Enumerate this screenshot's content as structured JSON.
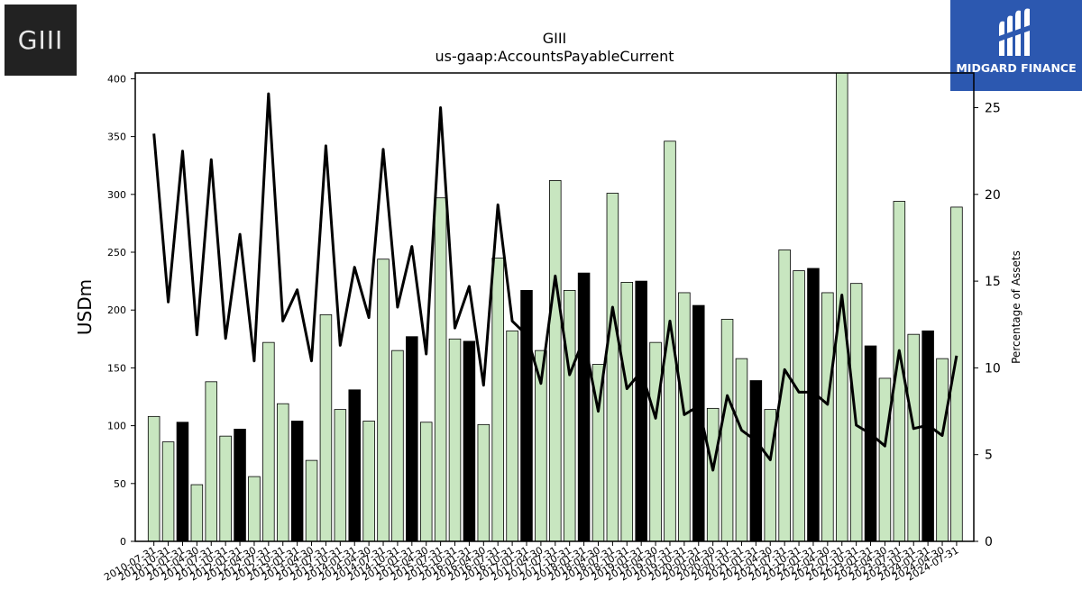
{
  "company_logo": {
    "text": "GIII",
    "bg": "#222222"
  },
  "brand_logo": {
    "text": "MIDGARD FINANCE",
    "bg": "#2c58b0"
  },
  "chart_data": {
    "type": "bar",
    "title": "GIII",
    "subtitle": "us-gaap:AccountsPayableCurrent",
    "ylabel": "USDm",
    "y2label": "Percentage of Assets",
    "ylim": [
      0,
      405
    ],
    "y2lim": [
      0,
      27
    ],
    "yticks": [
      0,
      50,
      100,
      150,
      200,
      250,
      300,
      350,
      400
    ],
    "y2ticks": [
      0,
      5,
      10,
      15,
      20,
      25
    ],
    "colors": {
      "bar_default": "#c8e6c0",
      "bar_highlight": "#000000",
      "line": "#000000"
    },
    "categories": [
      "2010-07-31",
      "2010-10-31",
      "2011-01-31",
      "2011-04-30",
      "2011-07-31",
      "2011-10-31",
      "2012-01-31",
      "2012-04-30",
      "2012-07-31",
      "2012-10-31",
      "2013-01-31",
      "2013-04-30",
      "2013-07-31",
      "2013-10-31",
      "2014-01-31",
      "2014-04-30",
      "2014-07-31",
      "2014-10-31",
      "2015-01-31",
      "2015-04-30",
      "2015-07-31",
      "2015-10-31",
      "2016-01-31",
      "2016-04-30",
      "2016-07-31",
      "2016-10-31",
      "2017-01-31",
      "2017-04-30",
      "2017-07-31",
      "2017-10-31",
      "2018-01-31",
      "2018-04-30",
      "2018-07-31",
      "2018-10-31",
      "2019-01-31",
      "2019-04-30",
      "2019-07-31",
      "2019-10-31",
      "2020-01-31",
      "2020-04-30",
      "2020-07-31",
      "2020-10-31",
      "2021-01-31",
      "2021-04-30",
      "2021-07-31",
      "2021-10-31",
      "2022-01-31",
      "2022-04-30",
      "2022-07-31",
      "2022-10-31",
      "2023-01-31",
      "2023-04-30",
      "2023-07-31",
      "2023-10-31",
      "2024-01-31",
      "2024-04-30",
      "2024-07-31"
    ],
    "highlight": [
      false,
      false,
      true,
      false,
      false,
      false,
      true,
      false,
      false,
      false,
      true,
      false,
      false,
      false,
      true,
      false,
      false,
      false,
      true,
      false,
      false,
      false,
      true,
      false,
      false,
      false,
      true,
      false,
      false,
      false,
      true,
      false,
      false,
      false,
      true,
      false,
      false,
      false,
      true,
      false,
      false,
      false,
      true,
      false,
      false,
      false,
      true,
      false,
      false,
      false,
      true,
      false,
      false,
      false,
      true,
      false,
      false
    ],
    "series": [
      {
        "type": "bar",
        "values": [
          108,
          86,
          103,
          49,
          138,
          91,
          97,
          56,
          172,
          119,
          104,
          70,
          196,
          114,
          131,
          104,
          244,
          165,
          177,
          103,
          297,
          175,
          173,
          101,
          245,
          182,
          217,
          165,
          312,
          217,
          232,
          153,
          301,
          224,
          225,
          172,
          346,
          215,
          204,
          115,
          192,
          158,
          139,
          114,
          252,
          234,
          236,
          215,
          405,
          223,
          169,
          141,
          294,
          179,
          182,
          158,
          289
        ]
      },
      {
        "type": "line",
        "values": [
          23.5,
          13.8,
          22.5,
          11.9,
          22.0,
          11.7,
          17.7,
          10.4,
          25.8,
          12.7,
          14.5,
          10.4,
          22.8,
          11.3,
          15.8,
          12.9,
          22.6,
          13.5,
          17.0,
          10.8,
          25.0,
          12.3,
          14.7,
          9.0,
          19.4,
          12.7,
          11.9,
          9.1,
          15.3,
          9.6,
          11.7,
          7.5,
          13.5,
          8.8,
          9.8,
          7.1,
          12.7,
          7.3,
          7.8,
          4.1,
          8.4,
          6.4,
          5.8,
          4.7,
          9.9,
          8.6,
          8.6,
          7.9,
          14.2,
          6.7,
          6.2,
          5.5,
          11.0,
          6.5,
          6.7,
          6.1,
          10.7
        ]
      }
    ]
  }
}
